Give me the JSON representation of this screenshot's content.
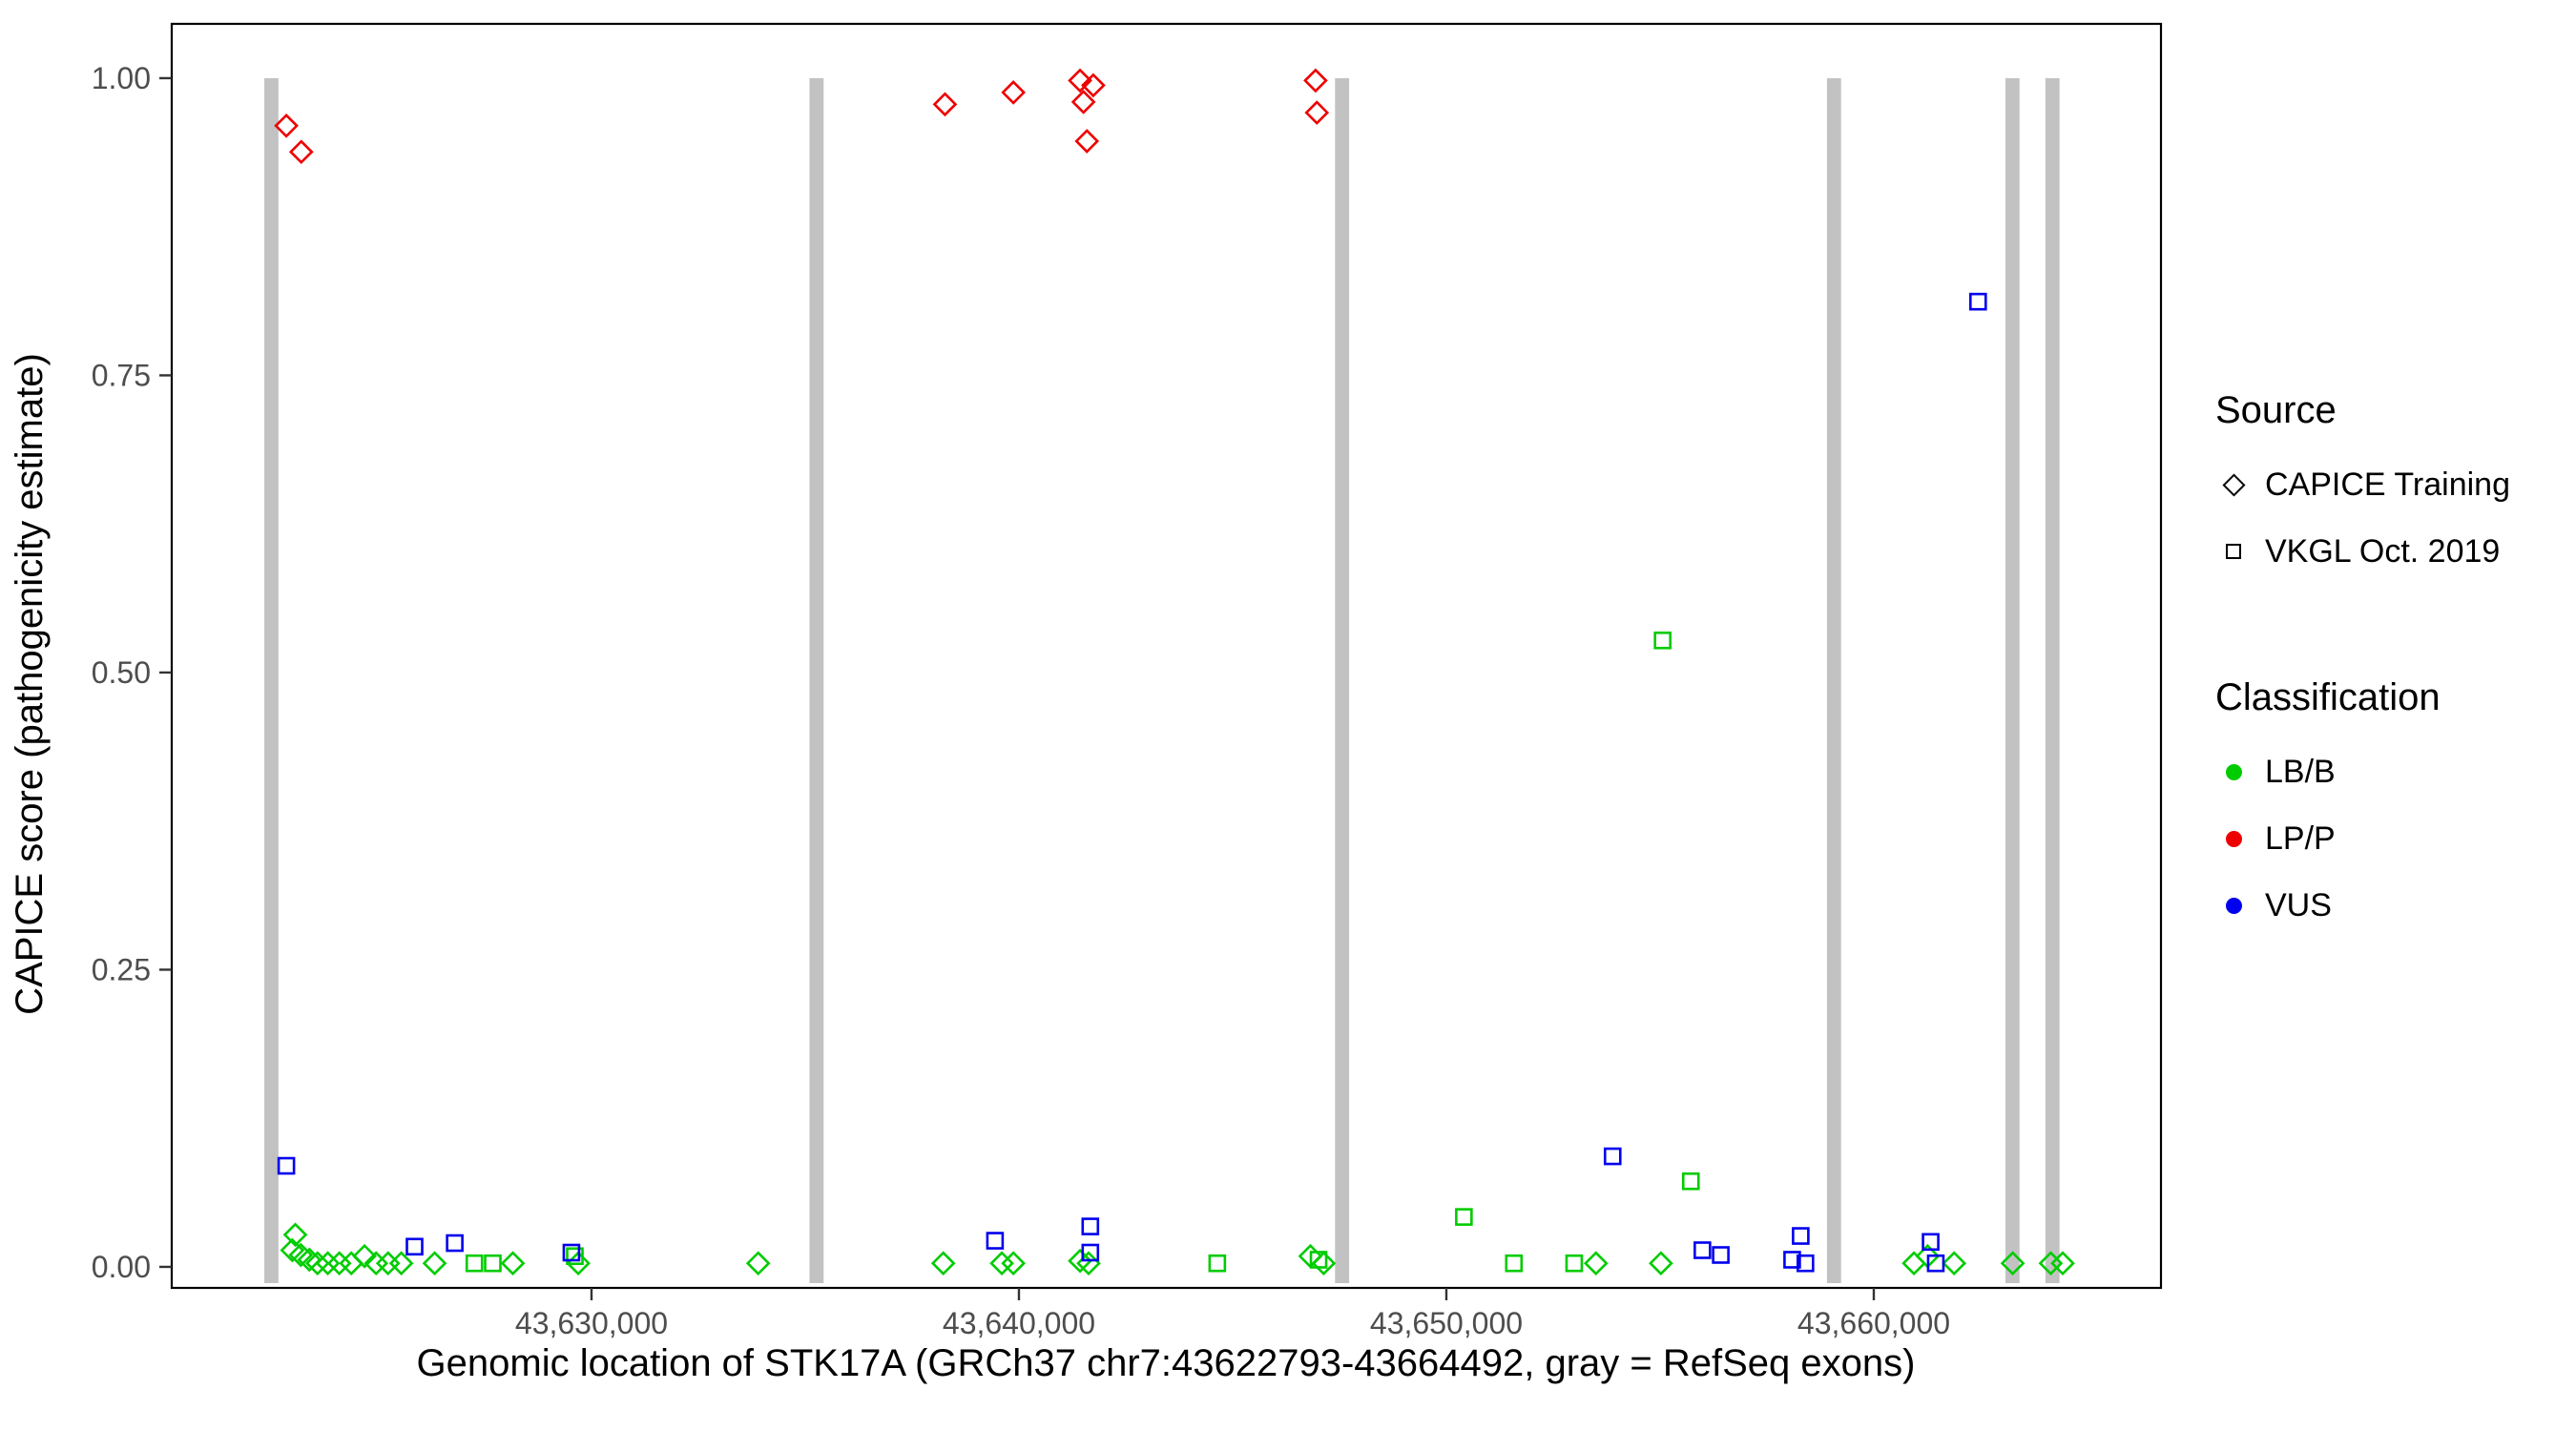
{
  "chart_data": {
    "type": "scatter",
    "title": "",
    "xlabel": "Genomic location of STK17A (GRCh37 chr7:43622793-43664492, gray = RefSeq exons)",
    "ylabel": "CAPICE score (pathogenicity estimate)",
    "x_domain": [
      43620179,
      43666719
    ],
    "y_domain": [
      -0.0177,
      1.0457
    ],
    "grid": "off",
    "legend_position": "right",
    "x_ticks": [
      {
        "value": 43630000,
        "label": "43,630,000"
      },
      {
        "value": 43640000,
        "label": "43,640,000"
      },
      {
        "value": 43650000,
        "label": "43,650,000"
      },
      {
        "value": 43660000,
        "label": "43,660,000"
      }
    ],
    "y_ticks": [
      {
        "value": 0.0,
        "label": "0.00"
      },
      {
        "value": 0.25,
        "label": "0.25"
      },
      {
        "value": 0.5,
        "label": "0.50"
      },
      {
        "value": 0.75,
        "label": "0.75"
      },
      {
        "value": 1.0,
        "label": "1.00"
      }
    ],
    "exon_color": "#c2c2c2",
    "exons": [
      {
        "start": 43622345,
        "end": 43622675
      },
      {
        "start": 43635100,
        "end": 43635430
      },
      {
        "start": 43647395,
        "end": 43647725
      },
      {
        "start": 43658905,
        "end": 43659235
      },
      {
        "start": 43663080,
        "end": 43663410
      },
      {
        "start": 43664015,
        "end": 43664345
      }
    ],
    "class_colors": {
      "LB/B": "#00cc00",
      "LP/P": "#ee0000",
      "VUS": "#0000ee"
    },
    "source_shapes": {
      "CAPICE Training": "diamond",
      "VKGL Oct. 2019": "square"
    },
    "series": [
      {
        "name": "LB/B — CAPICE Training",
        "source": "CAPICE Training",
        "classification": "LB/B",
        "points": [
          [
            43623070,
            0.027
          ],
          [
            43623000,
            0.014
          ],
          [
            43623200,
            0.01
          ],
          [
            43623400,
            0.006
          ],
          [
            43623590,
            0.003
          ],
          [
            43623830,
            0.003
          ],
          [
            43624100,
            0.003
          ],
          [
            43624380,
            0.003
          ],
          [
            43624690,
            0.009
          ],
          [
            43624960,
            0.003
          ],
          [
            43625240,
            0.003
          ],
          [
            43625550,
            0.003
          ],
          [
            43626330,
            0.003
          ],
          [
            43628160,
            0.003
          ],
          [
            43629690,
            0.003
          ],
          [
            43633900,
            0.003
          ],
          [
            43638230,
            0.003
          ],
          [
            43639600,
            0.003
          ],
          [
            43639870,
            0.003
          ],
          [
            43641430,
            0.005
          ],
          [
            43641630,
            0.003
          ],
          [
            43646820,
            0.009
          ],
          [
            43647130,
            0.003
          ],
          [
            43653500,
            0.003
          ],
          [
            43655020,
            0.003
          ],
          [
            43660940,
            0.003
          ],
          [
            43661260,
            0.009
          ],
          [
            43661880,
            0.003
          ],
          [
            43663250,
            0.003
          ],
          [
            43664140,
            0.003
          ],
          [
            43664420,
            0.003
          ]
        ]
      },
      {
        "name": "LB/B — VKGL Oct. 2019",
        "source": "VKGL Oct. 2019",
        "classification": "LB/B",
        "points": [
          [
            43627260,
            0.003
          ],
          [
            43627690,
            0.003
          ],
          [
            43629610,
            0.009
          ],
          [
            43644640,
            0.003
          ],
          [
            43647010,
            0.006
          ],
          [
            43650410,
            0.042
          ],
          [
            43651580,
            0.003
          ],
          [
            43652990,
            0.003
          ],
          [
            43655060,
            0.527
          ],
          [
            43655720,
            0.072
          ]
        ]
      },
      {
        "name": "VUS — VKGL Oct. 2019",
        "source": "VKGL Oct. 2019",
        "classification": "VUS",
        "points": [
          [
            43622860,
            0.085
          ],
          [
            43625860,
            0.017
          ],
          [
            43626800,
            0.02
          ],
          [
            43629530,
            0.012
          ],
          [
            43639440,
            0.022
          ],
          [
            43641670,
            0.034
          ],
          [
            43641670,
            0.012
          ],
          [
            43653890,
            0.093
          ],
          [
            43655990,
            0.014
          ],
          [
            43656420,
            0.01
          ],
          [
            43658290,
            0.026
          ],
          [
            43658090,
            0.006
          ],
          [
            43658400,
            0.003
          ],
          [
            43661330,
            0.021
          ],
          [
            43661450,
            0.003
          ],
          [
            43662440,
            0.812
          ]
        ]
      },
      {
        "name": "LP/P — CAPICE Training",
        "source": "CAPICE Training",
        "classification": "LP/P",
        "points": [
          [
            43622860,
            0.96
          ],
          [
            43623210,
            0.938
          ],
          [
            43638270,
            0.978
          ],
          [
            43639870,
            0.988
          ],
          [
            43641430,
            0.998
          ],
          [
            43641740,
            0.994
          ],
          [
            43641510,
            0.98
          ],
          [
            43641590,
            0.947
          ],
          [
            43646940,
            0.998
          ],
          [
            43646970,
            0.971
          ]
        ]
      }
    ]
  },
  "legend": {
    "source_title": "Source",
    "source_items": [
      {
        "label": "CAPICE Training",
        "shape": "diamond"
      },
      {
        "label": "VKGL Oct. 2019",
        "shape": "square"
      }
    ],
    "classification_title": "Classification",
    "classification_items": [
      {
        "label": "LB/B",
        "color": "#00cc00"
      },
      {
        "label": "LP/P",
        "color": "#ee0000"
      },
      {
        "label": "VUS",
        "color": "#0000ee"
      }
    ]
  }
}
